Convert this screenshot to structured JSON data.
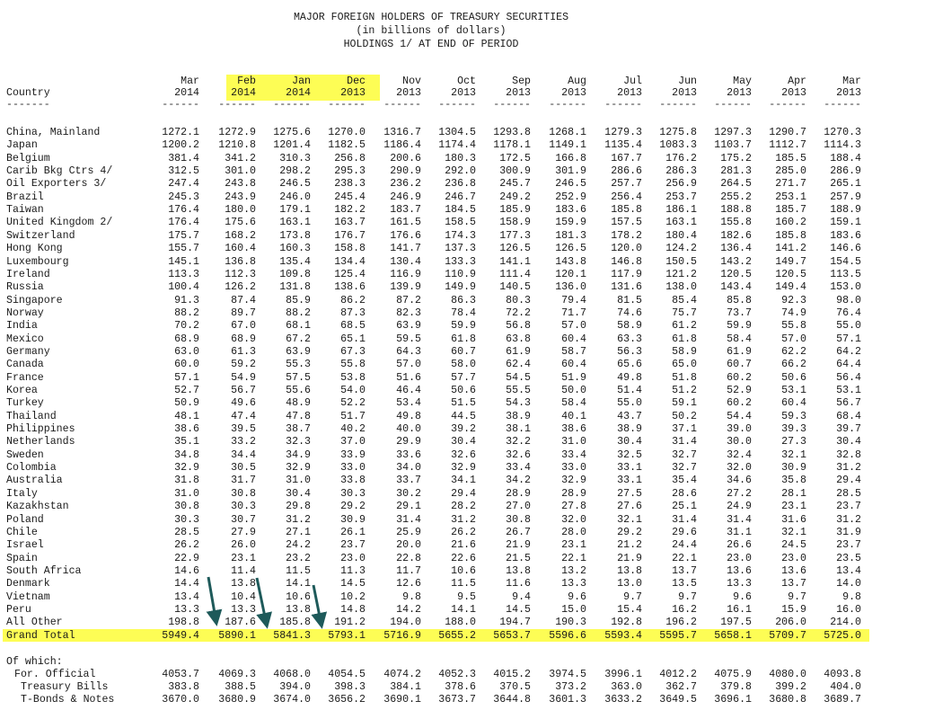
{
  "title_lines": [
    "MAJOR FOREIGN HOLDERS OF TREASURY SECURITIES",
    "(in billions of dollars)",
    "HOLDINGS 1/ AT END OF PERIOD"
  ],
  "country_header": "Country",
  "columns": [
    {
      "month": "Mar",
      "year": "2014",
      "highlight": false
    },
    {
      "month": "Feb",
      "year": "2014",
      "highlight": true
    },
    {
      "month": "Jan",
      "year": "2014",
      "highlight": true
    },
    {
      "month": "Dec",
      "year": "2013",
      "highlight": true
    },
    {
      "month": "Nov",
      "year": "2013",
      "highlight": false
    },
    {
      "month": "Oct",
      "year": "2013",
      "highlight": false
    },
    {
      "month": "Sep",
      "year": "2013",
      "highlight": false
    },
    {
      "month": "Aug",
      "year": "2013",
      "highlight": false
    },
    {
      "month": "Jul",
      "year": "2013",
      "highlight": false
    },
    {
      "month": "Jun",
      "year": "2013",
      "highlight": false
    },
    {
      "month": "May",
      "year": "2013",
      "highlight": false
    },
    {
      "month": "Apr",
      "year": "2013",
      "highlight": false
    },
    {
      "month": "Mar",
      "year": "2013",
      "highlight": false
    }
  ],
  "separator": "------",
  "country_separator": "-------",
  "rows": [
    {
      "name": "China, Mainland",
      "values": [
        "1272.1",
        "1272.9",
        "1275.6",
        "1270.0",
        "1316.7",
        "1304.5",
        "1293.8",
        "1268.1",
        "1279.3",
        "1275.8",
        "1297.3",
        "1290.7",
        "1270.3"
      ]
    },
    {
      "name": "Japan",
      "values": [
        "1200.2",
        "1210.8",
        "1201.4",
        "1182.5",
        "1186.4",
        "1174.4",
        "1178.1",
        "1149.1",
        "1135.4",
        "1083.3",
        "1103.7",
        "1112.7",
        "1114.3"
      ]
    },
    {
      "name": "Belgium",
      "values": [
        "381.4",
        "341.2",
        "310.3",
        "256.8",
        "200.6",
        "180.3",
        "172.5",
        "166.8",
        "167.7",
        "176.2",
        "175.2",
        "185.5",
        "188.4"
      ]
    },
    {
      "name": "Carib Bkg Ctrs 4/",
      "values": [
        "312.5",
        "301.0",
        "298.2",
        "295.3",
        "290.9",
        "292.0",
        "300.9",
        "301.9",
        "286.6",
        "286.3",
        "281.3",
        "285.0",
        "286.9"
      ]
    },
    {
      "name": "Oil Exporters 3/",
      "values": [
        "247.4",
        "243.8",
        "246.5",
        "238.3",
        "236.2",
        "236.8",
        "245.7",
        "246.5",
        "257.7",
        "256.9",
        "264.5",
        "271.7",
        "265.1"
      ]
    },
    {
      "name": "Brazil",
      "values": [
        "245.3",
        "243.9",
        "246.0",
        "245.4",
        "246.9",
        "246.7",
        "249.2",
        "252.9",
        "256.4",
        "253.7",
        "255.2",
        "253.1",
        "257.9"
      ]
    },
    {
      "name": "Taiwan",
      "values": [
        "176.4",
        "180.0",
        "179.1",
        "182.2",
        "183.7",
        "184.5",
        "185.9",
        "183.6",
        "185.8",
        "186.1",
        "188.8",
        "185.7",
        "188.9"
      ]
    },
    {
      "name": "United Kingdom 2/",
      "values": [
        "176.4",
        "175.6",
        "163.1",
        "163.7",
        "161.5",
        "158.5",
        "158.9",
        "159.9",
        "157.5",
        "163.1",
        "155.8",
        "160.2",
        "159.1"
      ]
    },
    {
      "name": "Switzerland",
      "values": [
        "175.7",
        "168.2",
        "173.8",
        "176.7",
        "176.6",
        "174.3",
        "177.3",
        "181.3",
        "178.2",
        "180.4",
        "182.6",
        "185.8",
        "183.6"
      ]
    },
    {
      "name": "Hong Kong",
      "values": [
        "155.7",
        "160.4",
        "160.3",
        "158.8",
        "141.7",
        "137.3",
        "126.5",
        "126.5",
        "120.0",
        "124.2",
        "136.4",
        "141.2",
        "146.6"
      ]
    },
    {
      "name": "Luxembourg",
      "values": [
        "145.1",
        "136.8",
        "135.4",
        "134.4",
        "130.4",
        "133.3",
        "141.1",
        "143.8",
        "146.8",
        "150.5",
        "143.2",
        "149.7",
        "154.5"
      ]
    },
    {
      "name": "Ireland",
      "values": [
        "113.3",
        "112.3",
        "109.8",
        "125.4",
        "116.9",
        "110.9",
        "111.4",
        "120.1",
        "117.9",
        "121.2",
        "120.5",
        "120.5",
        "113.5"
      ]
    },
    {
      "name": "Russia",
      "values": [
        "100.4",
        "126.2",
        "131.8",
        "138.6",
        "139.9",
        "149.9",
        "140.5",
        "136.0",
        "131.6",
        "138.0",
        "143.4",
        "149.4",
        "153.0"
      ]
    },
    {
      "name": "Singapore",
      "values": [
        "91.3",
        "87.4",
        "85.9",
        "86.2",
        "87.2",
        "86.3",
        "80.3",
        "79.4",
        "81.5",
        "85.4",
        "85.8",
        "92.3",
        "98.0"
      ]
    },
    {
      "name": "Norway",
      "values": [
        "88.2",
        "89.7",
        "88.2",
        "87.3",
        "82.3",
        "78.4",
        "72.2",
        "71.7",
        "74.6",
        "75.7",
        "73.7",
        "74.9",
        "76.4"
      ]
    },
    {
      "name": "India",
      "values": [
        "70.2",
        "67.0",
        "68.1",
        "68.5",
        "63.9",
        "59.9",
        "56.8",
        "57.0",
        "58.9",
        "61.2",
        "59.9",
        "55.8",
        "55.0"
      ]
    },
    {
      "name": "Mexico",
      "values": [
        "68.9",
        "68.9",
        "67.2",
        "65.1",
        "59.5",
        "61.8",
        "63.8",
        "60.4",
        "63.3",
        "61.8",
        "58.4",
        "57.0",
        "57.1"
      ]
    },
    {
      "name": "Germany",
      "values": [
        "63.0",
        "61.3",
        "63.9",
        "67.3",
        "64.3",
        "60.7",
        "61.9",
        "58.7",
        "56.3",
        "58.9",
        "61.9",
        "62.2",
        "64.2"
      ]
    },
    {
      "name": "Canada",
      "values": [
        "60.0",
        "59.2",
        "55.3",
        "55.8",
        "57.0",
        "58.0",
        "62.4",
        "60.4",
        "65.6",
        "65.0",
        "60.7",
        "66.2",
        "64.4"
      ]
    },
    {
      "name": "France",
      "values": [
        "57.1",
        "54.9",
        "57.5",
        "53.8",
        "51.6",
        "57.7",
        "54.5",
        "51.9",
        "49.8",
        "51.8",
        "60.2",
        "50.6",
        "56.4"
      ]
    },
    {
      "name": "Korea",
      "values": [
        "52.7",
        "56.7",
        "55.6",
        "54.0",
        "46.4",
        "50.6",
        "55.5",
        "50.0",
        "51.4",
        "51.2",
        "52.9",
        "53.1",
        "53.1"
      ]
    },
    {
      "name": "Turkey",
      "values": [
        "50.9",
        "49.6",
        "48.9",
        "52.2",
        "53.4",
        "51.5",
        "54.3",
        "58.4",
        "55.0",
        "59.1",
        "60.2",
        "60.4",
        "56.7"
      ]
    },
    {
      "name": "Thailand",
      "values": [
        "48.1",
        "47.4",
        "47.8",
        "51.7",
        "49.8",
        "44.5",
        "38.9",
        "40.1",
        "43.7",
        "50.2",
        "54.4",
        "59.3",
        "68.4"
      ]
    },
    {
      "name": "Philippines",
      "values": [
        "38.6",
        "39.5",
        "38.7",
        "40.2",
        "40.0",
        "39.2",
        "38.1",
        "38.6",
        "38.9",
        "37.1",
        "39.0",
        "39.3",
        "39.7"
      ]
    },
    {
      "name": "Netherlands",
      "values": [
        "35.1",
        "33.2",
        "32.3",
        "37.0",
        "29.9",
        "30.4",
        "32.2",
        "31.0",
        "30.4",
        "31.4",
        "30.0",
        "27.3",
        "30.4"
      ]
    },
    {
      "name": "Sweden",
      "values": [
        "34.8",
        "34.4",
        "34.9",
        "33.9",
        "33.6",
        "32.6",
        "32.6",
        "33.4",
        "32.5",
        "32.7",
        "32.4",
        "32.1",
        "32.8"
      ]
    },
    {
      "name": "Colombia",
      "values": [
        "32.9",
        "30.5",
        "32.9",
        "33.0",
        "34.0",
        "32.9",
        "33.4",
        "33.0",
        "33.1",
        "32.7",
        "32.0",
        "30.9",
        "31.2"
      ]
    },
    {
      "name": "Australia",
      "values": [
        "31.8",
        "31.7",
        "31.0",
        "33.8",
        "33.7",
        "34.1",
        "34.2",
        "32.9",
        "33.1",
        "35.4",
        "34.6",
        "35.8",
        "29.4"
      ]
    },
    {
      "name": "Italy",
      "values": [
        "31.0",
        "30.8",
        "30.4",
        "30.3",
        "30.2",
        "29.4",
        "28.9",
        "28.9",
        "27.5",
        "28.6",
        "27.2",
        "28.1",
        "28.5"
      ]
    },
    {
      "name": "Kazakhstan",
      "values": [
        "30.8",
        "30.3",
        "29.8",
        "29.2",
        "29.1",
        "28.2",
        "27.0",
        "27.8",
        "27.6",
        "25.1",
        "24.9",
        "23.1",
        "23.7"
      ]
    },
    {
      "name": "Poland",
      "values": [
        "30.3",
        "30.7",
        "31.2",
        "30.9",
        "31.4",
        "31.2",
        "30.8",
        "32.0",
        "32.1",
        "31.4",
        "31.4",
        "31.6",
        "31.2"
      ]
    },
    {
      "name": "Chile",
      "values": [
        "28.5",
        "27.9",
        "27.1",
        "26.1",
        "25.9",
        "26.2",
        "26.7",
        "28.0",
        "29.2",
        "29.6",
        "31.1",
        "32.1",
        "31.9"
      ]
    },
    {
      "name": "Israel",
      "values": [
        "26.2",
        "26.0",
        "24.2",
        "23.7",
        "20.0",
        "21.6",
        "21.9",
        "23.1",
        "21.2",
        "24.4",
        "26.6",
        "24.5",
        "23.7"
      ]
    },
    {
      "name": "Spain",
      "values": [
        "22.9",
        "23.1",
        "23.2",
        "23.0",
        "22.8",
        "22.6",
        "21.5",
        "22.1",
        "21.9",
        "22.1",
        "23.0",
        "23.0",
        "23.5"
      ]
    },
    {
      "name": "South Africa",
      "values": [
        "14.6",
        "11.4",
        "11.5",
        "11.3",
        "11.7",
        "10.6",
        "13.8",
        "13.2",
        "13.8",
        "13.7",
        "13.6",
        "13.6",
        "13.4"
      ]
    },
    {
      "name": "Denmark",
      "values": [
        "14.4",
        "13.8",
        "14.1",
        "14.5",
        "12.6",
        "11.5",
        "11.6",
        "13.3",
        "13.0",
        "13.5",
        "13.3",
        "13.7",
        "14.0"
      ]
    },
    {
      "name": "Vietnam",
      "values": [
        "13.4",
        "10.4",
        "10.6",
        "10.2",
        "9.8",
        "9.5",
        "9.4",
        "9.6",
        "9.7",
        "9.7",
        "9.6",
        "9.7",
        "9.8"
      ]
    },
    {
      "name": "Peru",
      "values": [
        "13.3",
        "13.3",
        "13.8",
        "14.8",
        "14.2",
        "14.1",
        "14.5",
        "15.0",
        "15.4",
        "16.2",
        "16.1",
        "15.9",
        "16.0"
      ]
    },
    {
      "name": "All Other",
      "values": [
        "198.8",
        "187.6",
        "185.8",
        "191.2",
        "194.0",
        "188.0",
        "194.7",
        "190.3",
        "192.8",
        "196.2",
        "197.5",
        "206.0",
        "214.0"
      ]
    }
  ],
  "grand_total": {
    "name": "Grand Total",
    "values": [
      "5949.4",
      "5890.1",
      "5841.3",
      "5793.1",
      "5716.9",
      "5655.2",
      "5653.7",
      "5596.6",
      "5593.4",
      "5595.7",
      "5658.1",
      "5709.7",
      "5725.0"
    ]
  },
  "of_which_label": "Of which:",
  "of_which_rows": [
    {
      "name": "For. Official",
      "values": [
        "4053.7",
        "4069.3",
        "4068.0",
        "4054.5",
        "4074.2",
        "4052.3",
        "4015.2",
        "3974.5",
        "3996.1",
        "4012.2",
        "4075.9",
        "4080.0",
        "4093.8"
      ]
    },
    {
      "name": "Treasury Bills",
      "values": [
        "383.8",
        "388.5",
        "394.0",
        "398.3",
        "384.1",
        "378.6",
        "370.5",
        "373.2",
        "363.0",
        "362.7",
        "379.8",
        "399.2",
        "404.0"
      ]
    },
    {
      "name": "T-Bonds & Notes",
      "values": [
        "3670.0",
        "3680.9",
        "3674.0",
        "3656.2",
        "3690.1",
        "3673.7",
        "3644.8",
        "3601.3",
        "3633.2",
        "3649.5",
        "3696.1",
        "3680.8",
        "3689.7"
      ]
    }
  ],
  "colors": {
    "highlight": "#fdfd55",
    "arrow": "#1e5a5a",
    "text": "#1a1a1a"
  }
}
